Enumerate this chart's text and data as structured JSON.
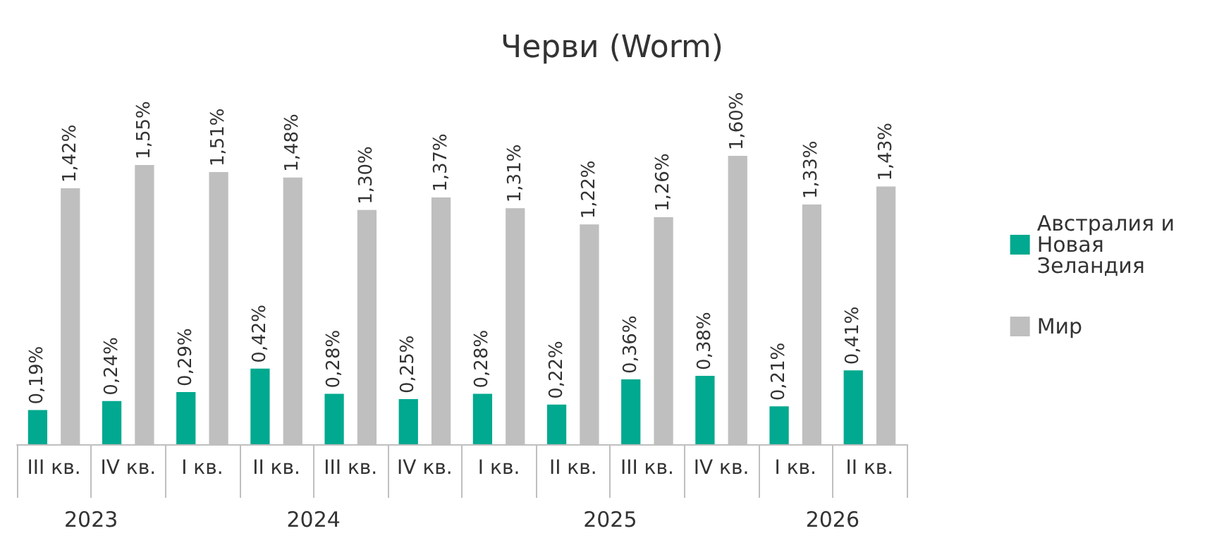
{
  "chart_data": {
    "type": "bar",
    "title": "Черви (Worm)",
    "categories": [
      "III кв.",
      "IV кв.",
      "I кв.",
      "II кв.",
      "III кв.",
      "IV кв.",
      "I кв.",
      "II кв.",
      "III кв.",
      "IV кв.",
      "I кв.",
      "II кв."
    ],
    "series": [
      {
        "name": "Австралия и Новая Зеландия",
        "color": "#00a98f",
        "values": [
          0.19,
          0.24,
          0.29,
          0.42,
          0.28,
          0.25,
          0.28,
          0.22,
          0.36,
          0.38,
          0.21,
          0.41
        ],
        "value_labels": [
          "0,19%",
          "0,24%",
          "0,29%",
          "0,42%",
          "0,28%",
          "0,25%",
          "0,28%",
          "0,22%",
          "0,36%",
          "0,38%",
          "0,21%",
          "0,41%"
        ]
      },
      {
        "name": "Мир",
        "color": "#bfbfbf",
        "values": [
          1.42,
          1.55,
          1.51,
          1.48,
          1.3,
          1.37,
          1.31,
          1.22,
          1.26,
          1.6,
          1.33,
          1.43
        ],
        "value_labels": [
          "1,42%",
          "1,55%",
          "1,51%",
          "1,48%",
          "1,30%",
          "1,37%",
          "1,31%",
          "1,22%",
          "1,26%",
          "1,60%",
          "1,33%",
          "1,43%"
        ]
      }
    ],
    "annotations": [
      "2023",
      "2024",
      "2025",
      "2026"
    ],
    "legend": "right"
  }
}
